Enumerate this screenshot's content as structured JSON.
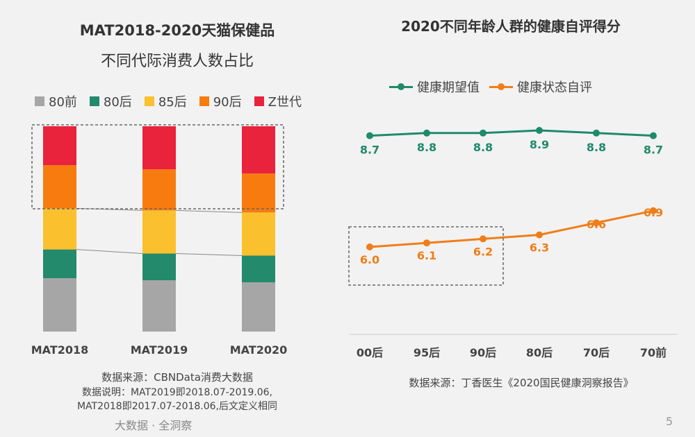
{
  "left": {
    "title_line1": "MAT2018-2020天猫保健品",
    "title_line2": "不同代际消费人数占比",
    "legend": [
      {
        "label": "80前",
        "color": "#a6a6a6"
      },
      {
        "label": "80后",
        "color": "#238a6b"
      },
      {
        "label": "85后",
        "color": "#fbc02d"
      },
      {
        "label": "90后",
        "color": "#f77b0f"
      },
      {
        "label": "Z世代",
        "color": "#e8233b"
      }
    ],
    "source": "数据来源：CBNData消费大数据",
    "note_line1": "数据说明：MAT2019即2018.07-2019.06,",
    "note_line2": "MAT2018即2017.07-2018.06,后文定义相同"
  },
  "right": {
    "title": "2020不同年龄人群的健康自评得分",
    "legend": [
      {
        "label": "健康期望值",
        "color": "#1f8a6a"
      },
      {
        "label": "健康状态自评",
        "color": "#f07d18"
      }
    ],
    "source": "数据来源：丁香医生《2020国民健康洞察报告》"
  },
  "footer": {
    "brand": "大数据 · 全洞察",
    "page": "5"
  },
  "chart_data": [
    {
      "type": "bar",
      "stacked": true,
      "normalized": true,
      "title": "MAT2018-2020天猫保健品不同代际消费人数占比",
      "categories": [
        "MAT2018",
        "MAT2019",
        "MAT2020"
      ],
      "series": [
        {
          "name": "80前",
          "color": "#a6a6a6",
          "values": [
            26,
            25,
            24
          ]
        },
        {
          "name": "80后",
          "color": "#238a6b",
          "values": [
            14,
            13,
            13
          ]
        },
        {
          "name": "85后",
          "color": "#fbc02d",
          "values": [
            20,
            21,
            21
          ]
        },
        {
          "name": "90后",
          "color": "#f77b0f",
          "values": [
            21,
            20,
            19
          ]
        },
        {
          "name": "Z世代",
          "color": "#e8233b",
          "values": [
            19,
            21,
            23
          ]
        }
      ],
      "ylim": [
        0,
        100
      ]
    },
    {
      "type": "line",
      "title": "2020不同年龄人群的健康自评得分",
      "categories": [
        "00后",
        "95后",
        "90后",
        "80后",
        "70后",
        "70前"
      ],
      "series": [
        {
          "name": "健康期望值",
          "color": "#1f8a6a",
          "values": [
            8.7,
            8.8,
            8.8,
            8.9,
            8.8,
            8.7
          ],
          "labels": [
            "8.7",
            "8.8",
            "8.8",
            "8.9",
            "8.8",
            "8.7"
          ]
        },
        {
          "name": "健康状态自评",
          "color": "#f07d18",
          "values": [
            6.0,
            6.1,
            6.2,
            6.3,
            6.6,
            6.9
          ],
          "labels": [
            "6.0",
            "6.1",
            "6.2",
            "6.3",
            "6.6",
            "6.9"
          ]
        }
      ]
    }
  ]
}
